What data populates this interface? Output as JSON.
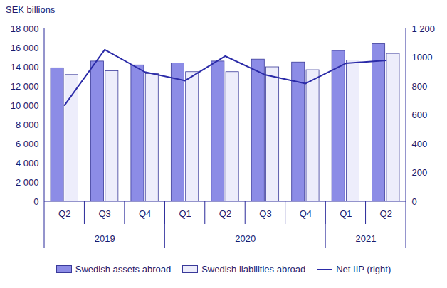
{
  "chart_data": {
    "type": "bar",
    "title": "SEK billions",
    "categories": [
      "Q2",
      "Q3",
      "Q4",
      "Q1",
      "Q2",
      "Q3",
      "Q4",
      "Q1",
      "Q2"
    ],
    "x_groups": [
      {
        "label": "2019",
        "count": 3
      },
      {
        "label": "2020",
        "count": 4
      },
      {
        "label": "2021",
        "count": 2
      }
    ],
    "series": [
      {
        "name": "Swedish assets abroad",
        "type": "bar",
        "color": "#8c8ce6",
        "values": [
          13900,
          14600,
          14200,
          14400,
          14600,
          14800,
          14500,
          15700,
          16400
        ]
      },
      {
        "name": "Swedish liabilities abroad",
        "type": "bar",
        "color": "#ededfb",
        "values": [
          13200,
          13600,
          13300,
          13500,
          13500,
          14000,
          13700,
          14700,
          15400
        ]
      },
      {
        "name": "Net IIP (right)",
        "type": "line",
        "axis": "y2",
        "color": "#2b2ba8",
        "values": [
          670,
          1055,
          900,
          840,
          1010,
          880,
          820,
          960,
          980
        ]
      }
    ],
    "ylim": [
      0,
      18000
    ],
    "yticks": [
      0,
      {
        "value": 2000,
        "label": "2 000"
      },
      {
        "value": 4000,
        "label": "4 000"
      },
      {
        "value": 6000,
        "label": "6 000"
      },
      {
        "value": 8000,
        "label": "8 000"
      },
      {
        "value": 10000,
        "label": "10 000"
      },
      {
        "value": 12000,
        "label": "12 000"
      },
      {
        "value": 14000,
        "label": "14 000"
      },
      {
        "value": 16000,
        "label": "16 000"
      },
      {
        "value": 18000,
        "label": "18 000"
      }
    ],
    "y2lim": [
      0,
      1200
    ],
    "y2ticks": [
      0,
      200,
      400,
      600,
      800,
      1000,
      {
        "value": 1200,
        "label": "1 200"
      }
    ],
    "grid": false,
    "legend": "bottom"
  }
}
